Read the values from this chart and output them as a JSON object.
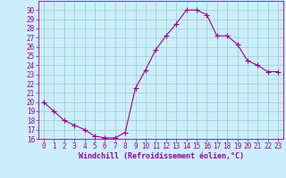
{
  "x": [
    0,
    1,
    2,
    3,
    4,
    5,
    6,
    7,
    8,
    9,
    10,
    11,
    12,
    13,
    14,
    15,
    16,
    17,
    18,
    19,
    20,
    21,
    22,
    23
  ],
  "y": [
    20,
    19,
    18,
    17.5,
    17,
    16.3,
    16.1,
    16.1,
    16.7,
    21.5,
    23.5,
    25.7,
    27.2,
    28.5,
    30,
    30,
    29.5,
    27.2,
    27.2,
    26.3,
    24.5,
    24,
    23.3,
    23.3
  ],
  "line_color": "#990099",
  "marker": "+",
  "marker_size": 4,
  "bg_color": "#cceeff",
  "grid_color": "#99ccbb",
  "xlabel": "Windchill (Refroidissement éolien,°C)",
  "xlabel_color": "#990099",
  "tick_color": "#990099",
  "spine_color": "#990099",
  "ylim": [
    16,
    31
  ],
  "xlim": [
    -0.5,
    23.5
  ],
  "yticks": [
    16,
    17,
    18,
    19,
    20,
    21,
    22,
    23,
    24,
    25,
    26,
    27,
    28,
    29,
    30
  ],
  "xticks": [
    0,
    1,
    2,
    3,
    4,
    5,
    6,
    7,
    8,
    9,
    10,
    11,
    12,
    13,
    14,
    15,
    16,
    17,
    18,
    19,
    20,
    21,
    22,
    23
  ],
  "tick_fontsize": 5.5,
  "xlabel_fontsize": 6.0
}
